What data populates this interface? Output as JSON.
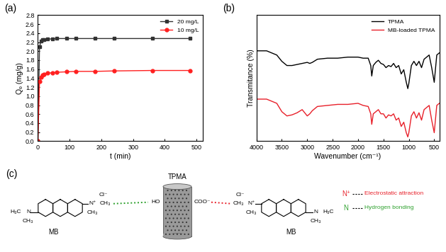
{
  "chart_data": [
    {
      "label": "(a)",
      "type": "line",
      "x_label": "t (min)",
      "y_label": "Qₑ (mg/g)",
      "x": [
        0,
        5,
        10,
        15,
        20,
        30,
        45,
        60,
        90,
        120,
        180,
        240,
        360,
        480
      ],
      "series": [
        {
          "name": "20 mg/L",
          "color": "#333333",
          "marker": "square",
          "line_style": "solid",
          "values": [
            0,
            2.1,
            2.22,
            2.25,
            2.26,
            2.27,
            2.27,
            2.28,
            2.28,
            2.28,
            2.28,
            2.28,
            2.28,
            2.28
          ]
        },
        {
          "name": "10 mg/L",
          "color": "#ff2020",
          "marker": "circle",
          "line_style": "solid",
          "values": [
            0,
            1.32,
            1.42,
            1.47,
            1.49,
            1.51,
            1.52,
            1.53,
            1.54,
            1.55,
            1.55,
            1.56,
            1.57,
            1.57
          ]
        }
      ],
      "xlim": [
        0,
        520
      ],
      "xticks": [
        0,
        100,
        200,
        300,
        400,
        500
      ],
      "ylim": [
        0.0,
        2.8
      ],
      "yticks": [
        0.0,
        0.2,
        0.4,
        0.6,
        0.8,
        1.0,
        1.2,
        1.4,
        1.6,
        1.8,
        2.0,
        2.2,
        2.4,
        2.6,
        2.8
      ],
      "legend": "upper right",
      "grid": false
    },
    {
      "label": "(b)",
      "type": "line",
      "x_label": "Wavenumber (cm⁻¹)",
      "y_label": "Transmitance (%)",
      "x": [
        4000,
        3800,
        3600,
        3500,
        3400,
        3300,
        3200,
        3100,
        3000,
        2950,
        2900,
        2800,
        2600,
        2400,
        2200,
        2000,
        1900,
        1800,
        1750,
        1730,
        1700,
        1650,
        1600,
        1550,
        1500,
        1450,
        1400,
        1350,
        1300,
        1250,
        1200,
        1150,
        1100,
        1050,
        1020,
        1000,
        950,
        900,
        850,
        800,
        750,
        700,
        650,
        600,
        550,
        500,
        450,
        400
      ],
      "series": [
        {
          "name": "TPMA",
          "color": "#000000",
          "line_style": "solid",
          "values": [
            86,
            86,
            82,
            76,
            72,
            72,
            73,
            74,
            75,
            74,
            75,
            78,
            79,
            79,
            80,
            80,
            79,
            79,
            72,
            62,
            72,
            75,
            77,
            74,
            73,
            70,
            72,
            71,
            74,
            70,
            72,
            64,
            68,
            56,
            50,
            55,
            72,
            76,
            72,
            76,
            70,
            78,
            80,
            82,
            70,
            56,
            82,
            84
          ]
        },
        {
          "name": "MB-loaded TPMA",
          "color": "#e8202a",
          "line_style": "solid",
          "values": [
            40,
            40,
            36,
            28,
            24,
            25,
            27,
            30,
            24,
            26,
            29,
            33,
            34,
            35,
            35,
            36,
            34,
            33,
            26,
            16,
            26,
            28,
            30,
            26,
            26,
            22,
            25,
            24,
            26,
            20,
            22,
            14,
            18,
            8,
            4,
            8,
            24,
            28,
            22,
            27,
            20,
            30,
            32,
            34,
            20,
            8,
            34,
            36
          ]
        }
      ],
      "xlim": [
        4000,
        400
      ],
      "xticks": [
        4000,
        3500,
        3000,
        2500,
        2000,
        1500,
        1000,
        500
      ],
      "ylim": [
        0,
        120
      ],
      "tick_labels": "x",
      "legend": "upper right",
      "grid": false
    }
  ],
  "diagram": {
    "label": "(c)",
    "molecules": [
      {
        "name": "MB",
        "amine": [
          "H₃C",
          "N",
          "CH₃"
        ],
        "ammonium": [
          "N⁺",
          "CH₃",
          "Cl⁻",
          "CH₃"
        ]
      },
      {
        "name": "MB",
        "amine": [
          "H₃C",
          "N",
          "CH₃"
        ],
        "ammonium": [
          "N⁺",
          "CH₃",
          "Cl⁻",
          "CH₃"
        ]
      }
    ],
    "adsorbent": {
      "name": "TPMA",
      "groups": [
        "HO",
        "COO⁻"
      ]
    },
    "interactions": [
      {
        "symbol": "N⁺",
        "text": "Electrostatic attraction",
        "color": "#e8202a"
      },
      {
        "symbol": "N",
        "text": "Hydrogen bonding",
        "color": "#2ca02c"
      }
    ]
  }
}
